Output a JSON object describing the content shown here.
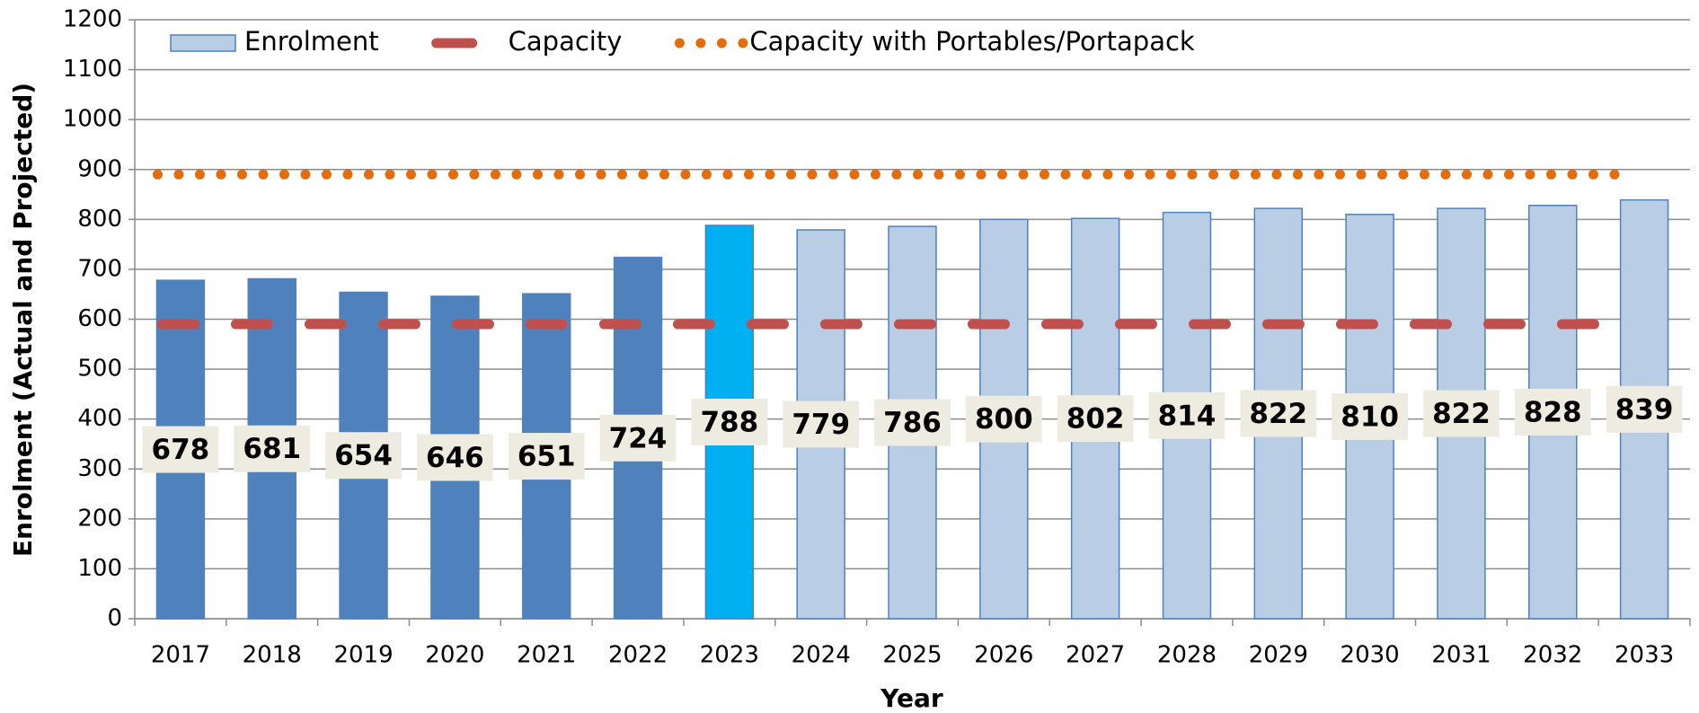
{
  "chart_data": {
    "type": "bar",
    "categories": [
      "2017",
      "2018",
      "2019",
      "2020",
      "2021",
      "2022",
      "2023",
      "2024",
      "2025",
      "2026",
      "2027",
      "2028",
      "2029",
      "2030",
      "2031",
      "2032",
      "2033"
    ],
    "x_label": "Year",
    "y_label": "Enrolment (Actual and Projected)",
    "ylim": [
      0,
      1200
    ],
    "yticks": [
      0,
      100,
      200,
      300,
      400,
      500,
      600,
      700,
      800,
      900,
      1000,
      1100,
      1200
    ],
    "grid": true,
    "legend": "top-left",
    "series": [
      {
        "name": "Enrolment",
        "type": "bar",
        "color": "#b9cde5",
        "colors": [
          "#4f81bd",
          "#4f81bd",
          "#4f81bd",
          "#4f81bd",
          "#4f81bd",
          "#4f81bd",
          "#00b0f0",
          "#b9cde5",
          "#b9cde5",
          "#b9cde5",
          "#b9cde5",
          "#b9cde5",
          "#b9cde5",
          "#b9cde5",
          "#b9cde5",
          "#b9cde5",
          "#b9cde5"
        ],
        "values": [
          678,
          681,
          654,
          646,
          651,
          724,
          788,
          779,
          786,
          800,
          802,
          814,
          822,
          810,
          822,
          828,
          839
        ]
      },
      {
        "name": "Capacity",
        "type": "dashed",
        "color": "#c0504d",
        "values": [
          590,
          590,
          590,
          590,
          590,
          590,
          590,
          590,
          590,
          590,
          590,
          590,
          590,
          590,
          590,
          590,
          590
        ]
      },
      {
        "name": "Capacity with Portables/Portapack",
        "type": "dotted",
        "color": "#e46c0a",
        "values": [
          890,
          890,
          890,
          890,
          890,
          890,
          890,
          890,
          890,
          890,
          890,
          890,
          890,
          890,
          890,
          890,
          890
        ]
      }
    ]
  }
}
